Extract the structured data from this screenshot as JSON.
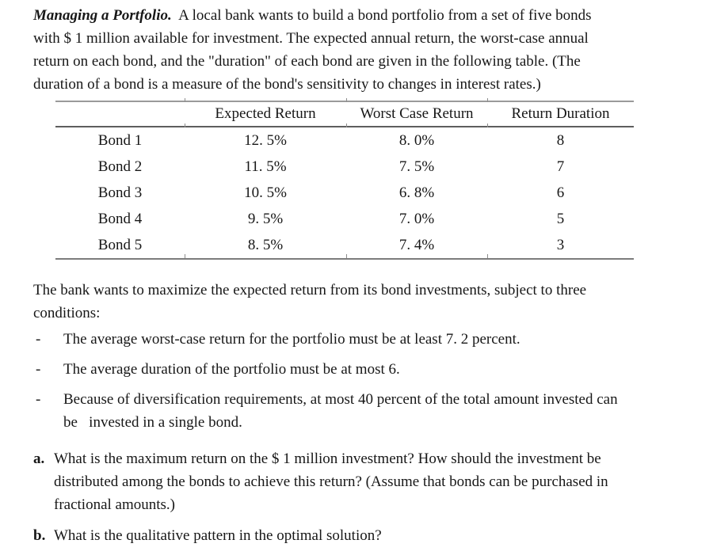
{
  "intro": {
    "title": "Managing a Portfolio.",
    "lines": [
      "  A local bank wants to build a bond portfolio from a set of five bonds",
      "with $ 1 million available for investment. The expected annual return, the worst-case annual",
      "return on each bond, and the \"duration\" of each bond are given in the following table. (The",
      "duration of a bond is a measure of the bond's sensitivity to changes in interest rates.)"
    ]
  },
  "table": {
    "headers": [
      "",
      "Expected Return",
      "Worst Case Return",
      "Return Duration"
    ],
    "rows": [
      {
        "name": "Bond 1",
        "expected": "12. 5%",
        "worst": "8. 0%",
        "duration": "8"
      },
      {
        "name": "Bond 2",
        "expected": "11. 5%",
        "worst": "7. 5%",
        "duration": "7"
      },
      {
        "name": "Bond 3",
        "expected": "10. 5%",
        "worst": "6. 8%",
        "duration": "6"
      },
      {
        "name": "Bond 4",
        "expected": "9. 5%",
        "worst": "7. 0%",
        "duration": "5"
      },
      {
        "name": "Bond 5",
        "expected": "8. 5%",
        "worst": "7. 4%",
        "duration": "3"
      }
    ]
  },
  "body": {
    "lines": [
      "The bank wants to maximize the expected return from its bond investments, subject to three",
      "conditions:"
    ]
  },
  "conditions": {
    "marker": "-",
    "items": [
      {
        "lines": [
          "The average worst-case return for the portfolio must be at least 7. 2 percent."
        ]
      },
      {
        "lines": [
          "The average duration of the portfolio must be at most 6."
        ]
      },
      {
        "lines": [
          "Because of diversification requirements, at most 40 percent of the total amount invested can",
          "be   invested in a single bond."
        ]
      }
    ]
  },
  "questions": {
    "items": [
      {
        "label": "a.",
        "lines": [
          "What is the maximum return on the $ 1 million investment? How should the investment be",
          "distributed among the bonds to achieve this return? (Assume that bonds can be purchased in",
          "fractional amounts.)"
        ]
      },
      {
        "label": "b.",
        "lines": [
          "What is the qualitative pattern in the optimal solution?"
        ]
      }
    ]
  }
}
